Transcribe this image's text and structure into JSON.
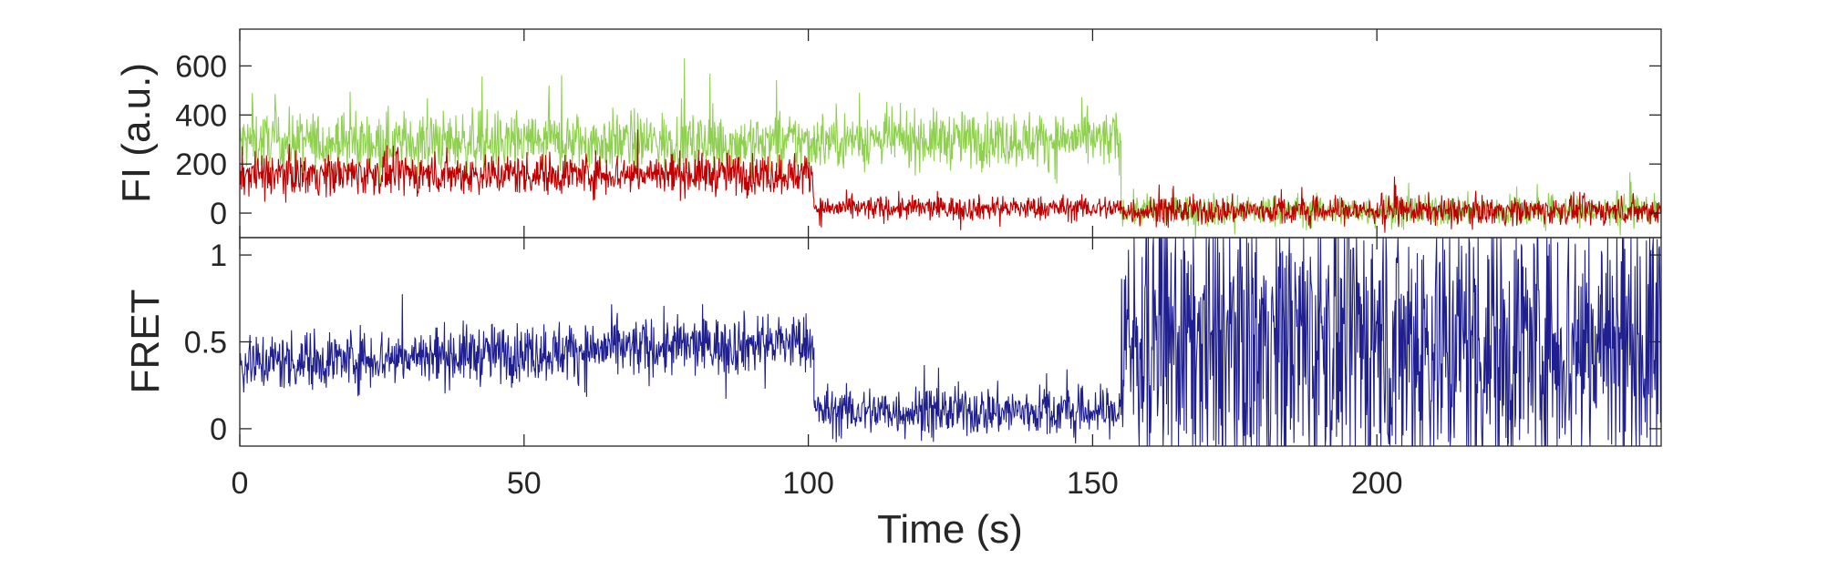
{
  "chart_data": [
    {
      "type": "line",
      "panel": "top",
      "ylabel": "FI (a.u.)",
      "xlim": [
        0,
        250
      ],
      "ylim": [
        -100,
        750
      ],
      "yticks": [
        0,
        200,
        400,
        600
      ],
      "grid": false,
      "series": [
        {
          "color": "#8fd14f",
          "segments": [
            {
              "t0": 0,
              "t1": 101,
              "mean": 290,
              "noise": 85
            },
            {
              "t0": 101,
              "t1": 155,
              "mean": 300,
              "noise": 80
            },
            {
              "t0": 155,
              "t1": 250,
              "mean": 10,
              "noise": 45
            }
          ]
        },
        {
          "color": "#c00000",
          "segments": [
            {
              "t0": 0,
              "t1": 101,
              "mean": 160,
              "noise": 60
            },
            {
              "t0": 101,
              "t1": 155,
              "mean": 20,
              "noise": 35
            },
            {
              "t0": 155,
              "t1": 250,
              "mean": 10,
              "noise": 40
            }
          ]
        }
      ]
    },
    {
      "type": "line",
      "panel": "bottom",
      "ylabel": "FRET",
      "xlabel": "Time (s)",
      "xlim": [
        0,
        250
      ],
      "ylim": [
        -0.1,
        1.1
      ],
      "yticks": [
        0,
        0.5,
        1
      ],
      "xticks": [
        0,
        50,
        100,
        150,
        200
      ],
      "grid": false,
      "series": [
        {
          "color": "#1f1f8f",
          "segments": [
            {
              "t0": 0,
              "t1": 101,
              "mean": 0.38,
              "noise": 0.12,
              "trend": 0.12
            },
            {
              "t0": 101,
              "t1": 155,
              "mean": 0.1,
              "noise": 0.1
            },
            {
              "t0": 155,
              "t1": 250,
              "mean": 0.5,
              "noise": 0.6,
              "clip": true
            }
          ]
        }
      ]
    }
  ],
  "labels": {
    "top_ylabel": "FI (a.u.)",
    "bottom_ylabel": "FRET",
    "xlabel": "Time (s)"
  }
}
